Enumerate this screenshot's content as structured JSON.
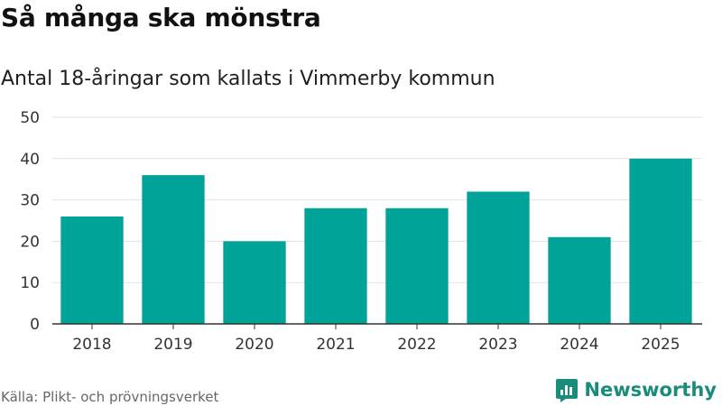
{
  "title": "Så många ska mönstra",
  "subtitle": "Antal 18-åringar som kallats i Vimmerby kommun",
  "source": "Källa: Plikt- och prövningsverket",
  "brand": {
    "name": "Newsworthy",
    "icon": "newsworthy-logo-icon",
    "color": "#1a8c7a"
  },
  "chart_data": {
    "type": "bar",
    "categories": [
      "2018",
      "2019",
      "2020",
      "2021",
      "2022",
      "2023",
      "2024",
      "2025"
    ],
    "values": [
      26,
      36,
      20,
      28,
      28,
      32,
      21,
      40
    ],
    "title": "Så många ska mönstra",
    "subtitle": "Antal 18-åringar som kallats i Vimmerby kommun",
    "xlabel": "",
    "ylabel": "",
    "ylim": [
      0,
      50
    ],
    "yticks": [
      0,
      10,
      20,
      30,
      40,
      50
    ],
    "grid": true,
    "legend": "none",
    "bar_color": "#00a398"
  }
}
